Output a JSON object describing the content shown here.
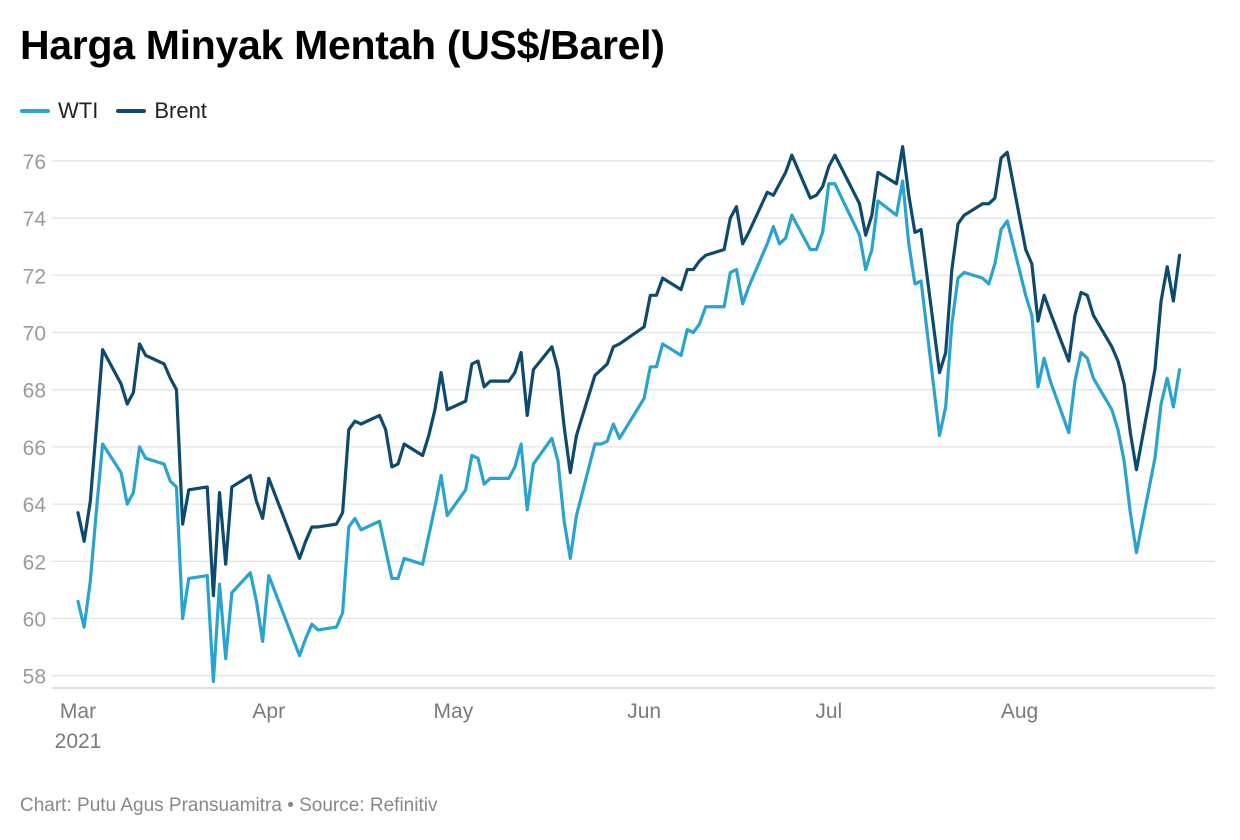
{
  "title": "Harga Minyak Mentah (US$/Barel)",
  "footer": "Chart: Putu Agus Pransuamitra • Source: Refinitiv",
  "colors": {
    "wti": "#2aa3cf",
    "brent": "#0d4a6e",
    "grid": "#e3e3e3",
    "tick": "#9a9a9a"
  },
  "chart_data": {
    "type": "line",
    "xlabel": "",
    "ylabel": "",
    "ylim": [
      57.5,
      76.8
    ],
    "xlim": [
      "2021-03-01",
      "2021-08-30"
    ],
    "yticks": [
      58,
      60,
      62,
      64,
      66,
      68,
      70,
      72,
      74,
      76
    ],
    "xticks": [
      {
        "date": "2021-03-01",
        "label": "Mar",
        "sublabel": "2021"
      },
      {
        "date": "2021-04-01",
        "label": "Apr",
        "sublabel": ""
      },
      {
        "date": "2021-05-01",
        "label": "May",
        "sublabel": ""
      },
      {
        "date": "2021-06-01",
        "label": "Jun",
        "sublabel": ""
      },
      {
        "date": "2021-07-01",
        "label": "Jul",
        "sublabel": ""
      },
      {
        "date": "2021-08-01",
        "label": "Aug",
        "sublabel": ""
      }
    ],
    "grid": true,
    "legend": "top-left",
    "series": [
      {
        "name": "WTI",
        "color": "#2aa3cf",
        "points": [
          [
            "2021-03-01",
            60.6
          ],
          [
            "2021-03-02",
            59.7
          ],
          [
            "2021-03-03",
            61.3
          ],
          [
            "2021-03-04",
            63.8
          ],
          [
            "2021-03-05",
            66.1
          ],
          [
            "2021-03-08",
            65.1
          ],
          [
            "2021-03-09",
            64.0
          ],
          [
            "2021-03-10",
            64.4
          ],
          [
            "2021-03-11",
            66.0
          ],
          [
            "2021-03-12",
            65.6
          ],
          [
            "2021-03-15",
            65.4
          ],
          [
            "2021-03-16",
            64.8
          ],
          [
            "2021-03-17",
            64.6
          ],
          [
            "2021-03-18",
            60.0
          ],
          [
            "2021-03-19",
            61.4
          ],
          [
            "2021-03-22",
            61.5
          ],
          [
            "2021-03-23",
            57.8
          ],
          [
            "2021-03-24",
            61.2
          ],
          [
            "2021-03-25",
            58.6
          ],
          [
            "2021-03-26",
            60.9
          ],
          [
            "2021-03-29",
            61.6
          ],
          [
            "2021-03-30",
            60.6
          ],
          [
            "2021-03-31",
            59.2
          ],
          [
            "2021-04-01",
            61.5
          ],
          [
            "2021-04-06",
            58.7
          ],
          [
            "2021-04-07",
            59.3
          ],
          [
            "2021-04-08",
            59.8
          ],
          [
            "2021-04-09",
            59.6
          ],
          [
            "2021-04-12",
            59.7
          ],
          [
            "2021-04-13",
            60.2
          ],
          [
            "2021-04-14",
            63.2
          ],
          [
            "2021-04-15",
            63.5
          ],
          [
            "2021-04-16",
            63.1
          ],
          [
            "2021-04-19",
            63.4
          ],
          [
            "2021-04-20",
            62.4
          ],
          [
            "2021-04-21",
            61.4
          ],
          [
            "2021-04-22",
            61.4
          ],
          [
            "2021-04-23",
            62.1
          ],
          [
            "2021-04-26",
            61.9
          ],
          [
            "2021-04-27",
            62.9
          ],
          [
            "2021-04-28",
            63.9
          ],
          [
            "2021-04-29",
            65.0
          ],
          [
            "2021-04-30",
            63.6
          ],
          [
            "2021-05-03",
            64.5
          ],
          [
            "2021-05-04",
            65.7
          ],
          [
            "2021-05-05",
            65.6
          ],
          [
            "2021-05-06",
            64.7
          ],
          [
            "2021-05-07",
            64.9
          ],
          [
            "2021-05-10",
            64.9
          ],
          [
            "2021-05-11",
            65.3
          ],
          [
            "2021-05-12",
            66.1
          ],
          [
            "2021-05-13",
            63.8
          ],
          [
            "2021-05-14",
            65.4
          ],
          [
            "2021-05-17",
            66.3
          ],
          [
            "2021-05-18",
            65.5
          ],
          [
            "2021-05-19",
            63.4
          ],
          [
            "2021-05-20",
            62.1
          ],
          [
            "2021-05-21",
            63.6
          ],
          [
            "2021-05-24",
            66.1
          ],
          [
            "2021-05-25",
            66.1
          ],
          [
            "2021-05-26",
            66.2
          ],
          [
            "2021-05-27",
            66.8
          ],
          [
            "2021-05-28",
            66.3
          ],
          [
            "2021-06-01",
            67.7
          ],
          [
            "2021-06-02",
            68.8
          ],
          [
            "2021-06-03",
            68.8
          ],
          [
            "2021-06-04",
            69.6
          ],
          [
            "2021-06-07",
            69.2
          ],
          [
            "2021-06-08",
            70.1
          ],
          [
            "2021-06-09",
            70.0
          ],
          [
            "2021-06-10",
            70.3
          ],
          [
            "2021-06-11",
            70.9
          ],
          [
            "2021-06-14",
            70.9
          ],
          [
            "2021-06-15",
            72.1
          ],
          [
            "2021-06-16",
            72.2
          ],
          [
            "2021-06-17",
            71.0
          ],
          [
            "2021-06-18",
            71.6
          ],
          [
            "2021-06-21",
            73.1
          ],
          [
            "2021-06-22",
            73.7
          ],
          [
            "2021-06-23",
            73.1
          ],
          [
            "2021-06-24",
            73.3
          ],
          [
            "2021-06-25",
            74.1
          ],
          [
            "2021-06-28",
            72.9
          ],
          [
            "2021-06-29",
            72.9
          ],
          [
            "2021-06-30",
            73.5
          ],
          [
            "2021-07-01",
            75.2
          ],
          [
            "2021-07-02",
            75.2
          ],
          [
            "2021-07-06",
            73.4
          ],
          [
            "2021-07-07",
            72.2
          ],
          [
            "2021-07-08",
            72.9
          ],
          [
            "2021-07-09",
            74.6
          ],
          [
            "2021-07-12",
            74.1
          ],
          [
            "2021-07-13",
            75.3
          ],
          [
            "2021-07-14",
            73.1
          ],
          [
            "2021-07-15",
            71.7
          ],
          [
            "2021-07-16",
            71.8
          ],
          [
            "2021-07-19",
            66.4
          ],
          [
            "2021-07-20",
            67.4
          ],
          [
            "2021-07-21",
            70.3
          ],
          [
            "2021-07-22",
            71.9
          ],
          [
            "2021-07-23",
            72.1
          ],
          [
            "2021-07-26",
            71.9
          ],
          [
            "2021-07-27",
            71.7
          ],
          [
            "2021-07-28",
            72.4
          ],
          [
            "2021-07-29",
            73.6
          ],
          [
            "2021-07-30",
            73.9
          ],
          [
            "2021-08-02",
            71.3
          ],
          [
            "2021-08-03",
            70.6
          ],
          [
            "2021-08-04",
            68.1
          ],
          [
            "2021-08-05",
            69.1
          ],
          [
            "2021-08-06",
            68.3
          ],
          [
            "2021-08-09",
            66.5
          ],
          [
            "2021-08-10",
            68.3
          ],
          [
            "2021-08-11",
            69.3
          ],
          [
            "2021-08-12",
            69.1
          ],
          [
            "2021-08-13",
            68.4
          ],
          [
            "2021-08-16",
            67.3
          ],
          [
            "2021-08-17",
            66.6
          ],
          [
            "2021-08-18",
            65.5
          ],
          [
            "2021-08-19",
            63.7
          ],
          [
            "2021-08-20",
            62.3
          ],
          [
            "2021-08-23",
            65.6
          ],
          [
            "2021-08-24",
            67.5
          ],
          [
            "2021-08-25",
            68.4
          ],
          [
            "2021-08-26",
            67.4
          ],
          [
            "2021-08-27",
            68.7
          ]
        ]
      },
      {
        "name": "Brent",
        "color": "#0d4a6e",
        "points": [
          [
            "2021-03-01",
            63.7
          ],
          [
            "2021-03-02",
            62.7
          ],
          [
            "2021-03-03",
            64.1
          ],
          [
            "2021-03-04",
            66.7
          ],
          [
            "2021-03-05",
            69.4
          ],
          [
            "2021-03-08",
            68.2
          ],
          [
            "2021-03-09",
            67.5
          ],
          [
            "2021-03-10",
            67.9
          ],
          [
            "2021-03-11",
            69.6
          ],
          [
            "2021-03-12",
            69.2
          ],
          [
            "2021-03-15",
            68.9
          ],
          [
            "2021-03-16",
            68.4
          ],
          [
            "2021-03-17",
            68.0
          ],
          [
            "2021-03-18",
            63.3
          ],
          [
            "2021-03-19",
            64.5
          ],
          [
            "2021-03-22",
            64.6
          ],
          [
            "2021-03-23",
            60.8
          ],
          [
            "2021-03-24",
            64.4
          ],
          [
            "2021-03-25",
            61.9
          ],
          [
            "2021-03-26",
            64.6
          ],
          [
            "2021-03-29",
            65.0
          ],
          [
            "2021-03-30",
            64.1
          ],
          [
            "2021-03-31",
            63.5
          ],
          [
            "2021-04-01",
            64.9
          ],
          [
            "2021-04-06",
            62.1
          ],
          [
            "2021-04-07",
            62.7
          ],
          [
            "2021-04-08",
            63.2
          ],
          [
            "2021-04-09",
            63.2
          ],
          [
            "2021-04-12",
            63.3
          ],
          [
            "2021-04-13",
            63.7
          ],
          [
            "2021-04-14",
            66.6
          ],
          [
            "2021-04-15",
            66.9
          ],
          [
            "2021-04-16",
            66.8
          ],
          [
            "2021-04-19",
            67.1
          ],
          [
            "2021-04-20",
            66.6
          ],
          [
            "2021-04-21",
            65.3
          ],
          [
            "2021-04-22",
            65.4
          ],
          [
            "2021-04-23",
            66.1
          ],
          [
            "2021-04-26",
            65.7
          ],
          [
            "2021-04-27",
            66.4
          ],
          [
            "2021-04-28",
            67.3
          ],
          [
            "2021-04-29",
            68.6
          ],
          [
            "2021-04-30",
            67.3
          ],
          [
            "2021-05-03",
            67.6
          ],
          [
            "2021-05-04",
            68.9
          ],
          [
            "2021-05-05",
            69.0
          ],
          [
            "2021-05-06",
            68.1
          ],
          [
            "2021-05-07",
            68.3
          ],
          [
            "2021-05-10",
            68.3
          ],
          [
            "2021-05-11",
            68.6
          ],
          [
            "2021-05-12",
            69.3
          ],
          [
            "2021-05-13",
            67.1
          ],
          [
            "2021-05-14",
            68.7
          ],
          [
            "2021-05-17",
            69.5
          ],
          [
            "2021-05-18",
            68.7
          ],
          [
            "2021-05-19",
            66.7
          ],
          [
            "2021-05-20",
            65.1
          ],
          [
            "2021-05-21",
            66.4
          ],
          [
            "2021-05-24",
            68.5
          ],
          [
            "2021-05-25",
            68.7
          ],
          [
            "2021-05-26",
            68.9
          ],
          [
            "2021-05-27",
            69.5
          ],
          [
            "2021-05-28",
            69.6
          ],
          [
            "2021-06-01",
            70.2
          ],
          [
            "2021-06-02",
            71.3
          ],
          [
            "2021-06-03",
            71.3
          ],
          [
            "2021-06-04",
            71.9
          ],
          [
            "2021-06-07",
            71.5
          ],
          [
            "2021-06-08",
            72.2
          ],
          [
            "2021-06-09",
            72.2
          ],
          [
            "2021-06-10",
            72.5
          ],
          [
            "2021-06-11",
            72.7
          ],
          [
            "2021-06-14",
            72.9
          ],
          [
            "2021-06-15",
            74.0
          ],
          [
            "2021-06-16",
            74.4
          ],
          [
            "2021-06-17",
            73.1
          ],
          [
            "2021-06-18",
            73.5
          ],
          [
            "2021-06-21",
            74.9
          ],
          [
            "2021-06-22",
            74.8
          ],
          [
            "2021-06-23",
            75.2
          ],
          [
            "2021-06-24",
            75.6
          ],
          [
            "2021-06-25",
            76.2
          ],
          [
            "2021-06-28",
            74.7
          ],
          [
            "2021-06-29",
            74.8
          ],
          [
            "2021-06-30",
            75.1
          ],
          [
            "2021-07-01",
            75.8
          ],
          [
            "2021-07-02",
            76.2
          ],
          [
            "2021-07-06",
            74.5
          ],
          [
            "2021-07-07",
            73.4
          ],
          [
            "2021-07-08",
            74.1
          ],
          [
            "2021-07-09",
            75.6
          ],
          [
            "2021-07-12",
            75.2
          ],
          [
            "2021-07-13",
            76.5
          ],
          [
            "2021-07-14",
            74.8
          ],
          [
            "2021-07-15",
            73.5
          ],
          [
            "2021-07-16",
            73.6
          ],
          [
            "2021-07-19",
            68.6
          ],
          [
            "2021-07-20",
            69.3
          ],
          [
            "2021-07-21",
            72.2
          ],
          [
            "2021-07-22",
            73.8
          ],
          [
            "2021-07-23",
            74.1
          ],
          [
            "2021-07-26",
            74.5
          ],
          [
            "2021-07-27",
            74.5
          ],
          [
            "2021-07-28",
            74.7
          ],
          [
            "2021-07-29",
            76.1
          ],
          [
            "2021-07-30",
            76.3
          ],
          [
            "2021-08-02",
            72.9
          ],
          [
            "2021-08-03",
            72.4
          ],
          [
            "2021-08-04",
            70.4
          ],
          [
            "2021-08-05",
            71.3
          ],
          [
            "2021-08-06",
            70.7
          ],
          [
            "2021-08-09",
            69.0
          ],
          [
            "2021-08-10",
            70.6
          ],
          [
            "2021-08-11",
            71.4
          ],
          [
            "2021-08-12",
            71.3
          ],
          [
            "2021-08-13",
            70.6
          ],
          [
            "2021-08-16",
            69.5
          ],
          [
            "2021-08-17",
            69.0
          ],
          [
            "2021-08-18",
            68.2
          ],
          [
            "2021-08-19",
            66.5
          ],
          [
            "2021-08-20",
            65.2
          ],
          [
            "2021-08-23",
            68.7
          ],
          [
            "2021-08-24",
            71.1
          ],
          [
            "2021-08-25",
            72.3
          ],
          [
            "2021-08-26",
            71.1
          ],
          [
            "2021-08-27",
            72.7
          ]
        ]
      }
    ]
  }
}
